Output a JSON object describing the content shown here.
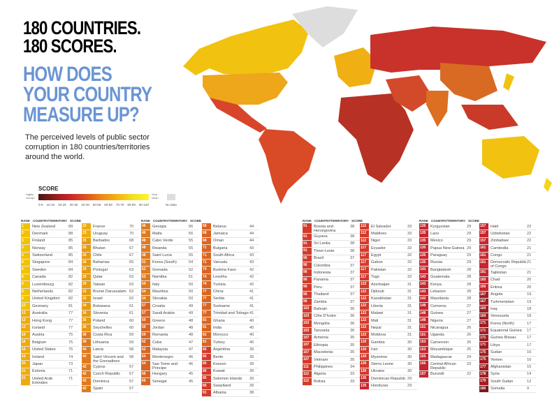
{
  "header": {
    "title_line1": "180 COUNTRIES.",
    "title_line2": "180 SCORES.",
    "question_line1": "HOW DOES",
    "question_line2": "YOUR COUNTRY",
    "question_line3": "MEASURE UP?",
    "subtitle": "The perceived levels of public sector corruption in 180 countries/territories around the world."
  },
  "legend": {
    "title": "SCORE",
    "low_label": "Highly corrupt",
    "high_label": "Very clean",
    "ranges": [
      "0-9",
      "10-19",
      "20-29",
      "30-39",
      "40-49",
      "50-59",
      "60-69",
      "70-79",
      "80-89",
      "90-100"
    ],
    "no_data": "No data"
  },
  "colors": {
    "title": "#000000",
    "question": "#6a95d3",
    "no_data": "#dddddd"
  },
  "table_headers": {
    "rank": "RANK",
    "country": "COUNTRY/TERRITORY",
    "score": "SCORE"
  },
  "columns": [
    {
      "header": true,
      "rows": [
        [
          "1",
          "New Zealand",
          89
        ],
        [
          "2",
          "Denmark",
          88
        ],
        [
          "3",
          "Finland",
          85
        ],
        [
          "3",
          "Norway",
          85
        ],
        [
          "3",
          "Switzerland",
          85
        ],
        [
          "6",
          "Singapore",
          84
        ],
        [
          "6",
          "Sweden",
          84
        ],
        [
          "8",
          "Canada",
          82
        ],
        [
          "8",
          "Luxembourg",
          82
        ],
        [
          "8",
          "Netherlands",
          82
        ],
        [
          "8",
          "United Kingdom",
          82
        ],
        [
          "12",
          "Germany",
          81
        ],
        [
          "13",
          "Australia",
          77
        ],
        [
          "13",
          "Hong Kong",
          77
        ],
        [
          "13",
          "Iceland",
          77
        ],
        [
          "16",
          "Austria",
          75
        ],
        [
          "16",
          "Belgium",
          75
        ],
        [
          "16",
          "United States",
          75
        ],
        [
          "19",
          "Ireland",
          74
        ],
        [
          "20",
          "Japan",
          73
        ],
        [
          "21",
          "Estonia",
          71
        ],
        [
          "21",
          "United Arab Emirates",
          71
        ]
      ]
    },
    {
      "header": false,
      "rows": [
        [
          "23",
          "France",
          70
        ],
        [
          "23",
          "Uruguay",
          70
        ],
        [
          "25",
          "Barbados",
          68
        ],
        [
          "26",
          "Bhutan",
          67
        ],
        [
          "26",
          "Chile",
          67
        ],
        [
          "28",
          "Bahamas",
          65
        ],
        [
          "29",
          "Portugal",
          63
        ],
        [
          "29",
          "Qatar",
          63
        ],
        [
          "29",
          "Taiwan",
          63
        ],
        [
          "32",
          "Brunei Darussalam",
          62
        ],
        [
          "32",
          "Israel",
          62
        ],
        [
          "34",
          "Botswana",
          61
        ],
        [
          "34",
          "Slovenia",
          61
        ],
        [
          "36",
          "Poland",
          60
        ],
        [
          "36",
          "Seychelles",
          60
        ],
        [
          "38",
          "Costa Rica",
          59
        ],
        [
          "38",
          "Lithuania",
          59
        ],
        [
          "40",
          "Latvia",
          58
        ],
        [
          "40",
          "Saint Vincent and the Grenadines",
          58
        ],
        [
          "42",
          "Cyprus",
          57
        ],
        [
          "42",
          "Czech Republic",
          57
        ],
        [
          "42",
          "Dominica",
          57
        ],
        [
          "42",
          "Spain",
          57
        ]
      ]
    },
    {
      "header": true,
      "rows": [
        [
          "46",
          "Georgia",
          56
        ],
        [
          "46",
          "Malta",
          56
        ],
        [
          "48",
          "Cabo Verde",
          55
        ],
        [
          "48",
          "Rwanda",
          55
        ],
        [
          "48",
          "Saint Lucia",
          55
        ],
        [
          "51",
          "Korea (South)",
          54
        ],
        [
          "52",
          "Grenada",
          52
        ],
        [
          "53",
          "Namibia",
          51
        ],
        [
          "54",
          "Italy",
          50
        ],
        [
          "54",
          "Mauritius",
          50
        ],
        [
          "54",
          "Slovakia",
          50
        ],
        [
          "57",
          "Croatia",
          49
        ],
        [
          "57",
          "Saudi Arabia",
          49
        ],
        [
          "59",
          "Greece",
          48
        ],
        [
          "59",
          "Jordan",
          48
        ],
        [
          "59",
          "Romania",
          48
        ],
        [
          "62",
          "Cuba",
          47
        ],
        [
          "62",
          "Malaysia",
          47
        ],
        [
          "64",
          "Montenegro",
          46
        ],
        [
          "64",
          "Sao Tome and Principe",
          46
        ],
        [
          "66",
          "Hungary",
          45
        ],
        [
          "66",
          "Senegal",
          45
        ]
      ]
    },
    {
      "header": false,
      "rows": [
        [
          "68",
          "Belarus",
          44
        ],
        [
          "68",
          "Jamaica",
          44
        ],
        [
          "68",
          "Oman",
          44
        ],
        [
          "71",
          "Bulgaria",
          43
        ],
        [
          "71",
          "South Africa",
          43
        ],
        [
          "71",
          "Vanuatu",
          43
        ],
        [
          "74",
          "Burkina Faso",
          42
        ],
        [
          "74",
          "Lesotho",
          42
        ],
        [
          "74",
          "Tunisia",
          42
        ],
        [
          "77",
          "China",
          41
        ],
        [
          "77",
          "Serbia",
          41
        ],
        [
          "77",
          "Suriname",
          41
        ],
        [
          "77",
          "Trinidad and Tobago",
          41
        ],
        [
          "81",
          "Ghana",
          40
        ],
        [
          "81",
          "India",
          40
        ],
        [
          "81",
          "Morocco",
          40
        ],
        [
          "81",
          "Turkey",
          40
        ],
        [
          "85",
          "Argentina",
          39
        ],
        [
          "85",
          "Benin",
          39
        ],
        [
          "85",
          "Kosovo",
          39
        ],
        [
          "85",
          "Kuwait",
          39
        ],
        [
          "85",
          "Solomon Islands",
          39
        ],
        [
          "85",
          "Swaziland",
          39
        ],
        [
          "91",
          "Albania",
          38
        ]
      ]
    },
    {
      "header": true,
      "rows": [
        [
          "91",
          "Bosnia and Herzegovina",
          38
        ],
        [
          "91",
          "Guyana",
          38
        ],
        [
          "91",
          "Sri Lanka",
          38
        ],
        [
          "91",
          "Timor-Leste",
          38
        ],
        [
          "96",
          "Brazil",
          37
        ],
        [
          "96",
          "Colombia",
          37
        ],
        [
          "96",
          "Indonesia",
          37
        ],
        [
          "96",
          "Panama",
          37
        ],
        [
          "96",
          "Peru",
          37
        ],
        [
          "96",
          "Thailand",
          37
        ],
        [
          "96",
          "Zambia",
          37
        ],
        [
          "103",
          "Bahrain",
          36
        ],
        [
          "103",
          "Côte D'Ivoire",
          36
        ],
        [
          "103",
          "Mongolia",
          36
        ],
        [
          "103",
          "Tanzania",
          36
        ],
        [
          "107",
          "Armenia",
          35
        ],
        [
          "107",
          "Ethiopia",
          35
        ],
        [
          "107",
          "Macedonia",
          35
        ],
        [
          "107",
          "Vietnam",
          35
        ],
        [
          "111",
          "Philippines",
          34
        ],
        [
          "112",
          "Algeria",
          33
        ],
        [
          "112",
          "Bolivia",
          33
        ]
      ]
    },
    {
      "header": false,
      "rows": [
        [
          "112",
          "El Salvador",
          33
        ],
        [
          "112",
          "Maldives",
          33
        ],
        [
          "112",
          "Niger",
          33
        ],
        [
          "117",
          "Ecuador",
          32
        ],
        [
          "117",
          "Egypt",
          32
        ],
        [
          "117",
          "Gabon",
          32
        ],
        [
          "117",
          "Pakistan",
          32
        ],
        [
          "117",
          "Togo",
          32
        ],
        [
          "122",
          "Azerbaijan",
          31
        ],
        [
          "122",
          "Djibouti",
          31
        ],
        [
          "122",
          "Kazakhstan",
          31
        ],
        [
          "122",
          "Liberia",
          31
        ],
        [
          "122",
          "Malawi",
          31
        ],
        [
          "122",
          "Mali",
          31
        ],
        [
          "122",
          "Nepal",
          31
        ],
        [
          "122",
          "Moldova",
          31
        ],
        [
          "130",
          "Gambia",
          30
        ],
        [
          "130",
          "Iran",
          30
        ],
        [
          "130",
          "Myanmar",
          30
        ],
        [
          "130",
          "Sierra Leone",
          30
        ],
        [
          "130",
          "Ukraine",
          30
        ],
        [
          "135",
          "Dominican Republic",
          29
        ],
        [
          "135",
          "Honduras",
          29
        ]
      ]
    },
    {
      "header": true,
      "rows": [
        [
          "135",
          "Kyrgyzstan",
          29
        ],
        [
          "135",
          "Laos",
          29
        ],
        [
          "135",
          "Mexico",
          29
        ],
        [
          "135",
          "Papua New Guinea",
          29
        ],
        [
          "135",
          "Paraguay",
          29
        ],
        [
          "135",
          "Russia",
          29
        ],
        [
          "143",
          "Bangladesh",
          28
        ],
        [
          "143",
          "Guatemala",
          28
        ],
        [
          "143",
          "Kenya",
          28
        ],
        [
          "143",
          "Lebanon",
          28
        ],
        [
          "143",
          "Mauritania",
          28
        ],
        [
          "148",
          "Comoros",
          27
        ],
        [
          "148",
          "Guinea",
          27
        ],
        [
          "148",
          "Nigeria",
          27
        ],
        [
          "151",
          "Nicaragua",
          26
        ],
        [
          "151",
          "Uganda",
          26
        ],
        [
          "153",
          "Cameroon",
          25
        ],
        [
          "153",
          "Mozambique",
          25
        ],
        [
          "155",
          "Madagascar",
          24
        ],
        [
          "156",
          "Central African Republic",
          23
        ],
        [
          "157",
          "Burundi",
          22
        ]
      ]
    },
    {
      "header": false,
      "rows": [
        [
          "157",
          "Haiti",
          22
        ],
        [
          "157",
          "Uzbekistan",
          22
        ],
        [
          "157",
          "Zimbabwe",
          22
        ],
        [
          "161",
          "Cambodia",
          21
        ],
        [
          "161",
          "Congo",
          21
        ],
        [
          "161",
          "Democratic Republic of Congo",
          21
        ],
        [
          "161",
          "Tajikistan",
          21
        ],
        [
          "165",
          "Chad",
          20
        ],
        [
          "165",
          "Eritrea",
          20
        ],
        [
          "167",
          "Angola",
          19
        ],
        [
          "167",
          "Turkmenistan",
          19
        ],
        [
          "169",
          "Iraq",
          18
        ],
        [
          "169",
          "Venezuela",
          18
        ],
        [
          "171",
          "Korea (North)",
          17
        ],
        [
          "171",
          "Equatorial Guinea",
          17
        ],
        [
          "171",
          "Guinea Bissau",
          17
        ],
        [
          "171",
          "Libya",
          17
        ],
        [
          "175",
          "Sudan",
          16
        ],
        [
          "175",
          "Yemen",
          16
        ],
        [
          "177",
          "Afghanistan",
          15
        ],
        [
          "178",
          "Syria",
          14
        ],
        [
          "179",
          "South Sudan",
          12
        ],
        [
          "180",
          "Somalia",
          9
        ]
      ]
    }
  ]
}
